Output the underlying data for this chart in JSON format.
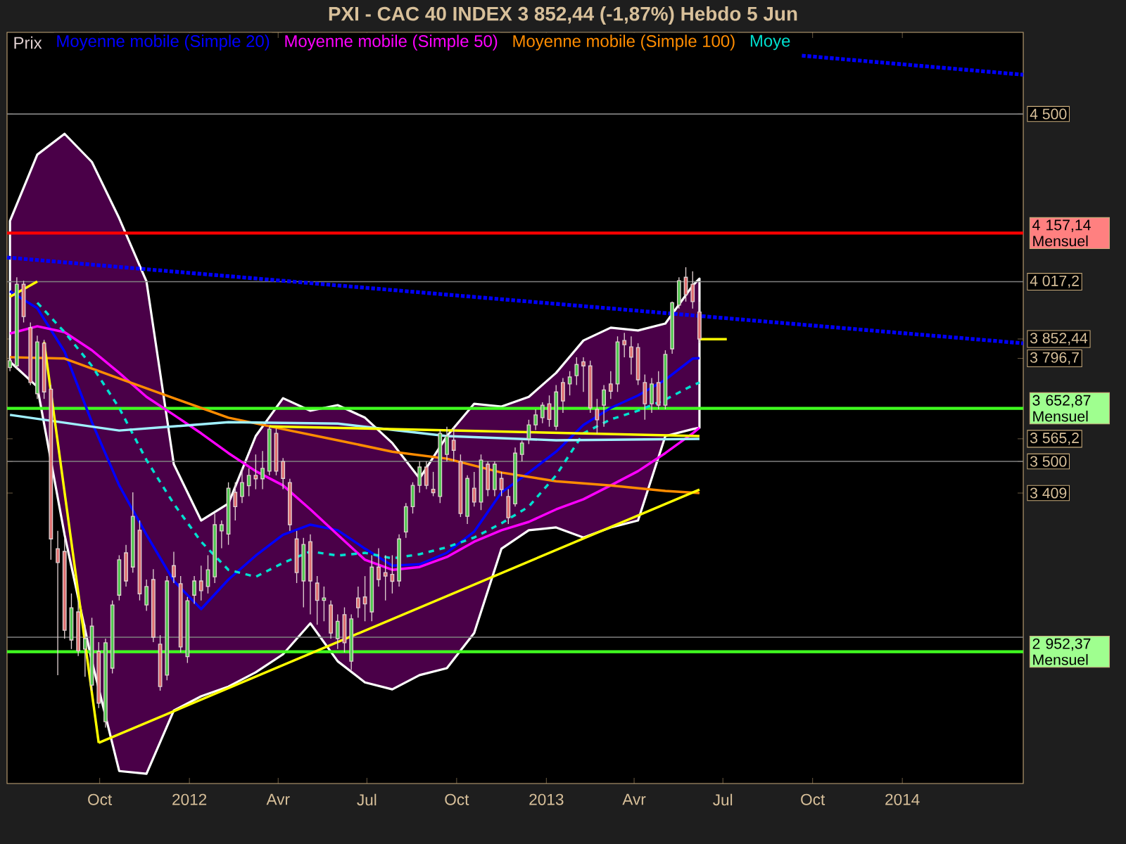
{
  "chart_data": {
    "type": "candlestick",
    "title": "PXI - CAC 40 INDEX    3 852,44 (-1,87%)    Hebdo  5 Jun",
    "xlim": [
      "2011-06-28",
      "2014-05-05"
    ],
    "ylim": [
      2573,
      4735
    ],
    "xticks": [
      {
        "value": "2011-10-01",
        "label": "Oct"
      },
      {
        "value": "2012-01-01",
        "label": "2012"
      },
      {
        "value": "2012-04-01",
        "label": "Avr"
      },
      {
        "value": "2012-07-01",
        "label": "Jul"
      },
      {
        "value": "2012-10-01",
        "label": "Oct"
      },
      {
        "value": "2013-01-01",
        "label": "2013"
      },
      {
        "value": "2013-04-01",
        "label": "Avr"
      },
      {
        "value": "2013-07-01",
        "label": "Jul"
      },
      {
        "value": "2013-10-01",
        "label": "Oct"
      },
      {
        "value": "2014-01-01",
        "label": "2014"
      }
    ],
    "yticks": [
      {
        "value": 4500,
        "label": "4 500"
      },
      {
        "value": 4017.2,
        "label": "4 017,2"
      },
      {
        "value": 3852.44,
        "label": "3 852,44"
      },
      {
        "value": 3796.7,
        "label": "3 796,7"
      },
      {
        "value": 3565.2,
        "label": "3 565,2"
      },
      {
        "value": 3500,
        "label": "3 500"
      },
      {
        "value": 3409,
        "label": "3 409"
      }
    ],
    "legend": "top left",
    "ref_lines": [
      {
        "axis": "y",
        "value": 4500,
        "color": "#808080"
      },
      {
        "axis": "y",
        "value": 4017.2,
        "color": "#808080"
      },
      {
        "axis": "y",
        "value": 3500,
        "color": "#808080"
      },
      {
        "axis": "y",
        "value": 2994,
        "color": "#808080"
      },
      {
        "axis": "y",
        "value": 4157.14,
        "label": "4 157,14 Mensuel",
        "color": "#ff0000"
      },
      {
        "axis": "y",
        "value": 3652.87,
        "label": "3 652,87 Mensuel",
        "color": "#40ff20"
      },
      {
        "axis": "y",
        "value": 2952.37,
        "label": "2 952,37 Mensuel",
        "color": "#40ff20"
      }
    ],
    "series": [
      {
        "name": "Moyenne mobile (Simple 20)",
        "type": "line",
        "color": "#0000ff",
        "line_style": "solid",
        "x": [
          "2011-07-01",
          "2011-07-29",
          "2011-08-26",
          "2011-09-23",
          "2011-10-21",
          "2011-11-18",
          "2011-12-16",
          "2012-01-13",
          "2012-02-10",
          "2012-03-09",
          "2012-04-06",
          "2012-05-04",
          "2012-06-01",
          "2012-06-29",
          "2012-07-27",
          "2012-08-24",
          "2012-09-21",
          "2012-10-19",
          "2012-11-16",
          "2012-12-14",
          "2013-01-11",
          "2013-02-08",
          "2013-03-08",
          "2013-04-05",
          "2013-05-03",
          "2013-05-31",
          "2013-06-07"
        ],
        "values": [
          3990,
          3941,
          3816,
          3613,
          3431,
          3289,
          3156,
          3075,
          3160,
          3229,
          3289,
          3318,
          3302,
          3249,
          3200,
          3204,
          3237,
          3298,
          3411,
          3468,
          3528,
          3605,
          3654,
          3690,
          3735,
          3796,
          3797
        ],
        "upper": [
          4192,
          4383,
          4443,
          4362,
          4200,
          4018,
          3492,
          3330,
          3379,
          3573,
          3682,
          3646,
          3662,
          3626,
          3553,
          3451,
          3573,
          3666,
          3658,
          3686,
          3755,
          3848,
          3885,
          3877,
          3897,
          4006,
          4026
        ],
        "lower": [
          3787,
          3715,
          3289,
          2925,
          2609,
          2601,
          2783,
          2824,
          2852,
          2893,
          2945,
          3034,
          2925,
          2864,
          2844,
          2885,
          2905,
          3006,
          3249,
          3302,
          3310,
          3281,
          3310,
          3330,
          3573,
          3593,
          3597
        ]
      },
      {
        "name": "Moyenne mobile (Simple 50)",
        "type": "line",
        "color": "#ff00ff",
        "line_style": "solid",
        "x": [
          "2011-07-01",
          "2011-07-29",
          "2011-08-26",
          "2011-09-23",
          "2011-10-21",
          "2011-11-18",
          "2011-12-16",
          "2012-01-13",
          "2012-02-10",
          "2012-03-09",
          "2012-04-06",
          "2012-05-04",
          "2012-06-01",
          "2012-06-29",
          "2012-07-27",
          "2012-08-24",
          "2012-09-21",
          "2012-10-19",
          "2012-11-16",
          "2012-12-14",
          "2013-01-11",
          "2013-02-08",
          "2013-03-08",
          "2013-04-05",
          "2013-05-03",
          "2013-05-31",
          "2013-06-07"
        ],
        "values": [
          3868,
          3889,
          3872,
          3820,
          3755,
          3686,
          3634,
          3581,
          3524,
          3472,
          3431,
          3362,
          3289,
          3217,
          3188,
          3196,
          3225,
          3269,
          3302,
          3326,
          3362,
          3391,
          3431,
          3472,
          3524,
          3581,
          3597
        ]
      },
      {
        "name": "Moyenne mobile (Simple 100)",
        "type": "line",
        "color": "#ff8c00",
        "line_style": "solid",
        "x": [
          "2011-07-01",
          "2011-08-26",
          "2011-10-21",
          "2011-12-16",
          "2012-02-10",
          "2012-04-06",
          "2012-06-01",
          "2012-07-27",
          "2012-09-21",
          "2012-11-16",
          "2013-01-11",
          "2013-03-08",
          "2013-05-03",
          "2013-06-07"
        ],
        "values": [
          3800,
          3796,
          3739,
          3682,
          3626,
          3593,
          3561,
          3528,
          3508,
          3468,
          3443,
          3431,
          3415,
          3409
        ]
      },
      {
        "name": "Moye",
        "type": "line",
        "color": "#00e0d0",
        "line_style": "dashed",
        "x": [
          "2011-07-29",
          "2011-08-26",
          "2011-09-23",
          "2011-10-21",
          "2011-11-18",
          "2011-12-16",
          "2012-01-13",
          "2012-02-10",
          "2012-03-09",
          "2012-04-06",
          "2012-05-04",
          "2012-06-01",
          "2012-06-29",
          "2012-07-27",
          "2012-08-24",
          "2012-09-21",
          "2012-10-19",
          "2012-11-16",
          "2012-12-14",
          "2013-01-11",
          "2013-02-08",
          "2013-03-08",
          "2013-04-05",
          "2013-05-03",
          "2013-05-31",
          "2013-06-07"
        ],
        "values": [
          3957,
          3872,
          3775,
          3654,
          3504,
          3378,
          3269,
          3188,
          3168,
          3208,
          3241,
          3229,
          3237,
          3221,
          3233,
          3253,
          3281,
          3322,
          3370,
          3460,
          3581,
          3621,
          3646,
          3678,
          3719,
          3727
        ]
      },
      {
        "type": "line",
        "color": "#a0f0ff",
        "line_style": "solid",
        "x": [
          "2011-07-01",
          "2011-10-21",
          "2012-02-10",
          "2012-06-01",
          "2012-09-21",
          "2013-01-11",
          "2013-06-07"
        ],
        "values": [
          3634,
          3589,
          3613,
          3609,
          3573,
          3561,
          3565
        ]
      },
      {
        "type": "line",
        "color": "#0000ff",
        "line_style": "dotted",
        "x": [
          "2011-06-28",
          "2014-05-05"
        ],
        "values": [
          4087,
          3840
        ]
      },
      {
        "type": "line",
        "color": "#0000ff",
        "line_style": "dotted",
        "x": [
          "2013-09-20",
          "2014-05-05"
        ],
        "values": [
          4668,
          4613
        ]
      },
      {
        "type": "line",
        "color": "#ffff00",
        "line_style": "solid",
        "x": [
          "2011-07-01",
          "2011-07-29"
        ],
        "values": [
          3974,
          4018
        ]
      },
      {
        "type": "line",
        "color": "#ffff00",
        "line_style": "solid",
        "x": [
          "2011-08-05",
          "2011-09-30"
        ],
        "values": [
          3844,
          2690
        ]
      },
      {
        "type": "line",
        "color": "#ffff00",
        "line_style": "solid",
        "x": [
          "2011-09-30",
          "2013-06-07"
        ],
        "values": [
          2690,
          3419
        ]
      },
      {
        "type": "line",
        "color": "#ffff00",
        "line_style": "solid",
        "x": [
          "2012-03-23",
          "2013-06-07"
        ],
        "values": [
          3601,
          3573
        ]
      },
      {
        "type": "line",
        "color": "#ffff00",
        "line_style": "solid",
        "x": [
          "2013-06-07",
          "2013-07-05"
        ],
        "values": [
          3852,
          3852
        ]
      },
      {
        "name": "Prix",
        "color": "#e0d0d0",
        "x": [
          "2011-07-01",
          "2011-07-08",
          "2011-07-15",
          "2011-07-22",
          "2011-07-29",
          "2011-08-05",
          "2011-08-12",
          "2011-08-19",
          "2011-08-26",
          "2011-09-02",
          "2011-09-09",
          "2011-09-16",
          "2011-09-23",
          "2011-09-30",
          "2011-10-07",
          "2011-10-14",
          "2011-10-21",
          "2011-10-28",
          "2011-11-04",
          "2011-11-11",
          "2011-11-18",
          "2011-11-25",
          "2011-12-02",
          "2011-12-09",
          "2011-12-16",
          "2011-12-23",
          "2011-12-30",
          "2012-01-06",
          "2012-01-13",
          "2012-01-20",
          "2012-01-27",
          "2012-02-03",
          "2012-02-10",
          "2012-02-17",
          "2012-02-24",
          "2012-03-02",
          "2012-03-09",
          "2012-03-16",
          "2012-03-23",
          "2012-03-30",
          "2012-04-06",
          "2012-04-13",
          "2012-04-20",
          "2012-04-27",
          "2012-05-04",
          "2012-05-11",
          "2012-05-18",
          "2012-05-25",
          "2012-06-01",
          "2012-06-08",
          "2012-06-15",
          "2012-06-22",
          "2012-06-29",
          "2012-07-06",
          "2012-07-13",
          "2012-07-20",
          "2012-07-27",
          "2012-08-03",
          "2012-08-10",
          "2012-08-17",
          "2012-08-24",
          "2012-08-31",
          "2012-09-07",
          "2012-09-14",
          "2012-09-21",
          "2012-09-28",
          "2012-10-05",
          "2012-10-12",
          "2012-10-19",
          "2012-10-26",
          "2012-11-02",
          "2012-11-09",
          "2012-11-16",
          "2012-11-23",
          "2012-11-30",
          "2012-12-07",
          "2012-12-14",
          "2012-12-21",
          "2012-12-28",
          "2013-01-04",
          "2013-01-11",
          "2013-01-18",
          "2013-01-25",
          "2013-02-01",
          "2013-02-08",
          "2013-02-15",
          "2013-02-22",
          "2013-03-01",
          "2013-03-08",
          "2013-03-15",
          "2013-03-22",
          "2013-03-29",
          "2013-04-05",
          "2013-04-12",
          "2013-04-19",
          "2013-04-26",
          "2013-05-03",
          "2013-05-10",
          "2013-05-17",
          "2013-05-24",
          "2013-05-31",
          "2013-06-07"
        ],
        "ohlc": [
          [
            3770,
            3800,
            3760,
            3790
          ],
          [
            3775,
            4030,
            3765,
            4010
          ],
          [
            4010,
            4020,
            3900,
            3917
          ],
          [
            3885,
            3900,
            3720,
            3727
          ],
          [
            3695,
            3862,
            3680,
            3844
          ],
          [
            3840,
            3850,
            3680,
            3700
          ],
          [
            3708,
            3720,
            3217,
            3277
          ],
          [
            3249,
            3300,
            2885,
            3209
          ],
          [
            3241,
            3280,
            2990,
            3014
          ],
          [
            2986,
            3120,
            2960,
            3079
          ],
          [
            3067,
            3100,
            2940,
            2955
          ],
          [
            2960,
            3030,
            2880,
            2990
          ],
          [
            2856,
            3050,
            2840,
            3026
          ],
          [
            2953,
            2980,
            2790,
            2804
          ],
          [
            2751,
            2990,
            2734,
            2978
          ],
          [
            2905,
            3100,
            2890,
            3087
          ],
          [
            3115,
            3230,
            3100,
            3217
          ],
          [
            3237,
            3260,
            3140,
            3156
          ],
          [
            3196,
            3411,
            3180,
            3342
          ],
          [
            3302,
            3330,
            3100,
            3119
          ],
          [
            3087,
            3160,
            3070,
            3140
          ],
          [
            3160,
            3190,
            2980,
            2994
          ],
          [
            2974,
            3000,
            2840,
            2852
          ],
          [
            2885,
            3170,
            2870,
            3156
          ],
          [
            3200,
            3240,
            3150,
            3168
          ],
          [
            3148,
            3170,
            2950,
            2966
          ],
          [
            2938,
            3110,
            2920,
            3099
          ],
          [
            3115,
            3170,
            3090,
            3156
          ],
          [
            3156,
            3200,
            3100,
            3128
          ],
          [
            3140,
            3230,
            3120,
            3188
          ],
          [
            3168,
            3350,
            3150,
            3318
          ],
          [
            3300,
            3330,
            3250,
            3318
          ],
          [
            3291,
            3440,
            3260,
            3423
          ],
          [
            3411,
            3440,
            3330,
            3370
          ],
          [
            3399,
            3480,
            3380,
            3439
          ],
          [
            3430,
            3480,
            3400,
            3460
          ],
          [
            3460,
            3520,
            3420,
            3450
          ],
          [
            3450,
            3530,
            3420,
            3480
          ],
          [
            3472,
            3600,
            3460,
            3593
          ],
          [
            3581,
            3595,
            3460,
            3472
          ],
          [
            3500,
            3510,
            3420,
            3451
          ],
          [
            3439,
            3450,
            3300,
            3318
          ],
          [
            3277,
            3300,
            3150,
            3180
          ],
          [
            3156,
            3280,
            3080,
            3261
          ],
          [
            3269,
            3290,
            3060,
            3156
          ],
          [
            3150,
            3170,
            3030,
            3100
          ],
          [
            3100,
            3140,
            3040,
            3107
          ],
          [
            3087,
            3100,
            2990,
            3006
          ],
          [
            2990,
            3060,
            2960,
            3040
          ],
          [
            3059,
            3080,
            2950,
            2978
          ],
          [
            2925,
            3060,
            2900,
            3047
          ],
          [
            3107,
            3140,
            3050,
            3079
          ],
          [
            3110,
            3170,
            3040,
            3090
          ],
          [
            3067,
            3230,
            3040,
            3196
          ],
          [
            3196,
            3250,
            3140,
            3160
          ],
          [
            3180,
            3230,
            3100,
            3170
          ],
          [
            3175,
            3230,
            3120,
            3155
          ],
          [
            3156,
            3290,
            3140,
            3277
          ],
          [
            3297,
            3380,
            3280,
            3370
          ],
          [
            3370,
            3440,
            3350,
            3431
          ],
          [
            3431,
            3500,
            3410,
            3484
          ],
          [
            3484,
            3500,
            3420,
            3431
          ],
          [
            3420,
            3470,
            3400,
            3410
          ],
          [
            3399,
            3590,
            3380,
            3581
          ],
          [
            3520,
            3600,
            3500,
            3573
          ],
          [
            3561,
            3600,
            3500,
            3532
          ],
          [
            3500,
            3520,
            3340,
            3350
          ],
          [
            3342,
            3460,
            3320,
            3451
          ],
          [
            3423,
            3470,
            3370,
            3383
          ],
          [
            3383,
            3520,
            3360,
            3504
          ],
          [
            3492,
            3500,
            3400,
            3419
          ],
          [
            3419,
            3500,
            3400,
            3492
          ],
          [
            3451,
            3470,
            3400,
            3419
          ],
          [
            3399,
            3420,
            3320,
            3338
          ],
          [
            3378,
            3540,
            3370,
            3524
          ],
          [
            3520,
            3560,
            3500,
            3553
          ],
          [
            3565,
            3620,
            3550,
            3605
          ],
          [
            3605,
            3650,
            3590,
            3634
          ],
          [
            3626,
            3670,
            3610,
            3662
          ],
          [
            3666,
            3690,
            3600,
            3621
          ],
          [
            3601,
            3720,
            3590,
            3700
          ],
          [
            3727,
            3740,
            3640,
            3674
          ],
          [
            3723,
            3760,
            3690,
            3743
          ],
          [
            3747,
            3800,
            3720,
            3779
          ],
          [
            3787,
            3800,
            3700,
            3775
          ],
          [
            3775,
            3790,
            3640,
            3654
          ],
          [
            3650,
            3680,
            3580,
            3620
          ],
          [
            3662,
            3720,
            3600,
            3706
          ],
          [
            3723,
            3760,
            3680,
            3702
          ],
          [
            3723,
            3860,
            3700,
            3844
          ],
          [
            3848,
            3870,
            3800,
            3836
          ],
          [
            3830,
            3860,
            3750,
            3800
          ],
          [
            3828,
            3840,
            3720,
            3735
          ],
          [
            3727,
            3750,
            3620,
            3666
          ],
          [
            3666,
            3740,
            3640,
            3723
          ],
          [
            3727,
            3760,
            3650,
            3662
          ],
          [
            3662,
            3820,
            3650,
            3808
          ],
          [
            3824,
            3960,
            3810,
            3957
          ],
          [
            3950,
            4030,
            3940,
            4020
          ],
          [
            4030,
            4059,
            3960,
            3980
          ],
          [
            4010,
            4047,
            3940,
            3960
          ],
          [
            3930,
            3960,
            3840,
            3852.44
          ]
        ]
      }
    ]
  }
}
